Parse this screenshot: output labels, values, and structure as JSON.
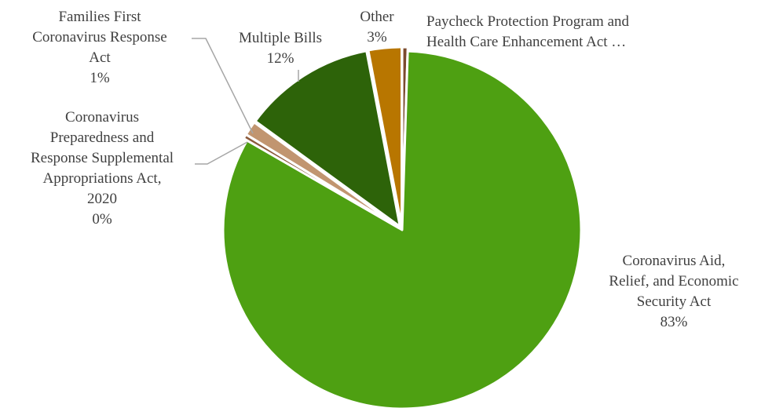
{
  "chart_data": {
    "type": "pie",
    "categories": [
      "Coronavirus Aid, Relief, and Economic Security Act",
      "Coronavirus Preparedness and Response Supplemental Appropriations Act, 2020",
      "Families First Coronavirus Response Act",
      "Multiple Bills",
      "Other",
      "Paycheck Protection Program and Health Care Enhancement Act …"
    ],
    "values": [
      83,
      0.4,
      1.3,
      12,
      3,
      0.5
    ],
    "value_labels": [
      "83%",
      "0%",
      "1%",
      "12%",
      "3%",
      ""
    ],
    "colors": [
      "#4ea012",
      "#8c5a3c",
      "#c19570",
      "#2d6309",
      "#b87600",
      "#7a4a2e"
    ],
    "legend": "none"
  }
}
